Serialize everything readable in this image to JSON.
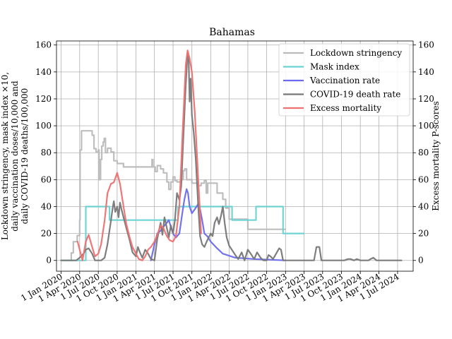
{
  "chart_data": {
    "type": "line",
    "title": "Bahamas",
    "ylabel_left": [
      "Lockdown stringency, mask index ×10,",
      "daily vaccination doses/10,000 and",
      "daily COVID-19 deaths/100,000"
    ],
    "ylabel_right": "Excess mortality P-scores",
    "ylim_left": [
      -8,
      163
    ],
    "ylim_right": [
      -8,
      163
    ],
    "x_range": [
      "2019-12-10",
      "2024-09-15"
    ],
    "x_ticks": [
      {
        "date": "2020-01-01",
        "label": "1 Jan 2020"
      },
      {
        "date": "2020-04-01",
        "label": "1 Apr 2020"
      },
      {
        "date": "2020-07-01",
        "label": "1 Jul 2020"
      },
      {
        "date": "2020-10-01",
        "label": "1 Oct 2020"
      },
      {
        "date": "2021-01-01",
        "label": "1 Jan 2021"
      },
      {
        "date": "2021-04-01",
        "label": "1 Apr 2021"
      },
      {
        "date": "2021-07-01",
        "label": "1 Jul 2021"
      },
      {
        "date": "2021-10-01",
        "label": "1 Oct 2021"
      },
      {
        "date": "2022-01-01",
        "label": "1 Jan 2022"
      },
      {
        "date": "2022-04-01",
        "label": "1 Apr 2022"
      },
      {
        "date": "2022-07-01",
        "label": "1 Jul 2022"
      },
      {
        "date": "2022-10-01",
        "label": "1 Oct 2022"
      },
      {
        "date": "2023-01-01",
        "label": "1 Jan 2023"
      },
      {
        "date": "2023-04-01",
        "label": "1 Apr 2023"
      },
      {
        "date": "2023-07-01",
        "label": "1 Jul 2023"
      },
      {
        "date": "2023-10-01",
        "label": "1 Oct 2023"
      },
      {
        "date": "2024-01-01",
        "label": "1 Jan 2024"
      },
      {
        "date": "2024-04-01",
        "label": "1 Apr 2024"
      },
      {
        "date": "2024-07-01",
        "label": "1 Jul 2024"
      }
    ],
    "y_ticks_left": [
      0,
      20,
      40,
      60,
      80,
      100,
      120,
      140,
      160
    ],
    "y_ticks_right": [
      0,
      20,
      40,
      60,
      80,
      100,
      120,
      140,
      160
    ],
    "grid": true,
    "legend_position": "top-right",
    "series": [
      {
        "name": "Lockdown stringency",
        "color": "#bbbbbb",
        "axis": "left",
        "step": true,
        "points": [
          [
            "2020-01-01",
            0
          ],
          [
            "2020-02-10",
            0
          ],
          [
            "2020-02-20",
            5.6
          ],
          [
            "2020-03-01",
            13.9
          ],
          [
            "2020-03-20",
            18.5
          ],
          [
            "2020-04-01",
            30
          ],
          [
            "2020-04-03",
            82
          ],
          [
            "2020-04-10",
            96.3
          ],
          [
            "2020-06-01",
            93
          ],
          [
            "2020-06-10",
            83
          ],
          [
            "2020-06-20",
            80.6
          ],
          [
            "2020-07-01",
            82
          ],
          [
            "2020-07-05",
            60
          ],
          [
            "2020-07-12",
            75
          ],
          [
            "2020-07-18",
            85
          ],
          [
            "2020-07-25",
            88
          ],
          [
            "2020-07-30",
            90.7
          ],
          [
            "2020-08-05",
            80
          ],
          [
            "2020-08-15",
            83.3
          ],
          [
            "2020-09-01",
            80.6
          ],
          [
            "2020-09-15",
            74
          ],
          [
            "2020-10-01",
            72
          ],
          [
            "2020-11-01",
            69.4
          ],
          [
            "2021-03-15",
            69.4
          ],
          [
            "2021-03-20",
            75
          ],
          [
            "2021-03-25",
            69.4
          ],
          [
            "2021-04-05",
            66
          ],
          [
            "2021-04-15",
            70.4
          ],
          [
            "2021-05-01",
            68
          ],
          [
            "2021-05-15",
            65
          ],
          [
            "2021-06-01",
            58.3
          ],
          [
            "2021-06-10",
            52.8
          ],
          [
            "2021-06-20",
            58.3
          ],
          [
            "2021-07-01",
            62
          ],
          [
            "2021-07-10",
            59.3
          ],
          [
            "2021-07-20",
            58.3
          ],
          [
            "2021-08-10",
            60
          ],
          [
            "2021-08-20",
            66.7
          ],
          [
            "2021-08-27",
            68
          ],
          [
            "2021-09-05",
            60
          ],
          [
            "2021-10-01",
            57.4
          ],
          [
            "2021-11-01",
            55.6
          ],
          [
            "2021-11-15",
            57.4
          ],
          [
            "2021-12-01",
            59.3
          ],
          [
            "2021-12-10",
            50
          ],
          [
            "2021-12-17",
            57.4
          ],
          [
            "2022-01-20",
            57.4
          ],
          [
            "2022-02-01",
            50
          ],
          [
            "2022-03-01",
            45.4
          ],
          [
            "2022-03-15",
            38.9
          ],
          [
            "2022-04-01",
            30.6
          ],
          [
            "2022-06-01",
            30.6
          ],
          [
            "2022-07-01",
            23.1
          ],
          [
            "2022-12-15",
            23.1
          ],
          [
            "2022-12-31",
            23.1
          ]
        ]
      },
      {
        "name": "Mask index",
        "color": "#6ad3d3",
        "axis": "left",
        "step": true,
        "points": [
          [
            "2020-01-01",
            0
          ],
          [
            "2020-04-15",
            0
          ],
          [
            "2020-05-01",
            40
          ],
          [
            "2020-08-15",
            40
          ],
          [
            "2020-08-25",
            30
          ],
          [
            "2021-07-15",
            30
          ],
          [
            "2021-07-25",
            40
          ],
          [
            "2022-03-15",
            40
          ],
          [
            "2022-04-15",
            30
          ],
          [
            "2022-08-01",
            30
          ],
          [
            "2022-08-10",
            40
          ],
          [
            "2022-12-15",
            40
          ],
          [
            "2022-12-20",
            20
          ],
          [
            "2023-03-31",
            20
          ]
        ]
      },
      {
        "name": "Vaccination rate",
        "color": "#6b6bef",
        "axis": "left",
        "step": false,
        "points": [
          [
            "2021-03-15",
            0
          ],
          [
            "2021-04-01",
            12
          ],
          [
            "2021-04-15",
            20
          ],
          [
            "2021-05-01",
            22
          ],
          [
            "2021-05-15",
            25
          ],
          [
            "2021-06-01",
            28
          ],
          [
            "2021-06-10",
            30
          ],
          [
            "2021-06-20",
            25
          ],
          [
            "2021-07-01",
            20
          ],
          [
            "2021-07-15",
            17
          ],
          [
            "2021-08-01",
            20
          ],
          [
            "2021-08-15",
            35
          ],
          [
            "2021-08-25",
            45
          ],
          [
            "2021-09-05",
            53
          ],
          [
            "2021-09-12",
            50
          ],
          [
            "2021-09-20",
            40
          ],
          [
            "2021-10-01",
            35
          ],
          [
            "2021-10-15",
            38
          ],
          [
            "2021-11-01",
            42
          ],
          [
            "2021-11-10",
            38
          ],
          [
            "2021-11-20",
            30
          ],
          [
            "2021-12-01",
            20
          ],
          [
            "2021-12-15",
            18
          ],
          [
            "2022-01-01",
            14
          ],
          [
            "2022-02-01",
            9
          ],
          [
            "2022-03-01",
            5
          ],
          [
            "2022-05-01",
            2
          ],
          [
            "2022-08-01",
            1
          ],
          [
            "2023-01-01",
            0
          ]
        ]
      },
      {
        "name": "COVID-19 death rate",
        "color": "#777777",
        "axis": "left",
        "step": false,
        "points": [
          [
            "2020-01-01",
            0
          ],
          [
            "2020-03-15",
            0
          ],
          [
            "2020-04-01",
            2
          ],
          [
            "2020-04-20",
            5
          ],
          [
            "2020-05-01",
            8
          ],
          [
            "2020-05-15",
            9
          ],
          [
            "2020-06-01",
            5
          ],
          [
            "2020-06-15",
            0
          ],
          [
            "2020-07-01",
            0
          ],
          [
            "2020-07-15",
            0
          ],
          [
            "2020-08-01",
            2
          ],
          [
            "2020-08-15",
            12
          ],
          [
            "2020-09-01",
            30
          ],
          [
            "2020-09-10",
            40
          ],
          [
            "2020-09-15",
            44
          ],
          [
            "2020-09-22",
            36
          ],
          [
            "2020-10-01",
            40
          ],
          [
            "2020-10-08",
            32
          ],
          [
            "2020-10-15",
            43
          ],
          [
            "2020-10-22",
            38
          ],
          [
            "2020-11-01",
            32
          ],
          [
            "2020-11-15",
            24
          ],
          [
            "2020-12-01",
            15
          ],
          [
            "2020-12-15",
            6
          ],
          [
            "2021-01-01",
            3
          ],
          [
            "2021-01-10",
            10
          ],
          [
            "2021-01-20",
            6
          ],
          [
            "2021-02-01",
            2
          ],
          [
            "2021-02-15",
            8
          ],
          [
            "2021-03-01",
            5
          ],
          [
            "2021-03-15",
            1
          ],
          [
            "2021-04-01",
            0
          ],
          [
            "2021-04-15",
            16
          ],
          [
            "2021-05-01",
            28
          ],
          [
            "2021-05-10",
            19
          ],
          [
            "2021-05-20",
            32
          ],
          [
            "2021-06-01",
            24
          ],
          [
            "2021-06-10",
            17
          ],
          [
            "2021-06-20",
            26
          ],
          [
            "2021-07-01",
            20
          ],
          [
            "2021-07-10",
            30
          ],
          [
            "2021-07-20",
            50
          ],
          [
            "2021-08-01",
            45
          ],
          [
            "2021-08-10",
            55
          ],
          [
            "2021-08-20",
            90
          ],
          [
            "2021-09-01",
            130
          ],
          [
            "2021-09-10",
            154
          ],
          [
            "2021-09-15",
            150
          ],
          [
            "2021-09-20",
            118
          ],
          [
            "2021-09-25",
            135
          ],
          [
            "2021-10-01",
            108
          ],
          [
            "2021-10-10",
            95
          ],
          [
            "2021-10-20",
            75
          ],
          [
            "2021-11-01",
            40
          ],
          [
            "2021-11-10",
            18
          ],
          [
            "2021-11-20",
            12
          ],
          [
            "2021-12-01",
            10
          ],
          [
            "2021-12-15",
            15
          ],
          [
            "2022-01-01",
            20
          ],
          [
            "2022-01-10",
            18
          ],
          [
            "2022-01-20",
            28
          ],
          [
            "2022-02-01",
            32
          ],
          [
            "2022-02-10",
            27
          ],
          [
            "2022-02-20",
            33
          ],
          [
            "2022-03-01",
            40
          ],
          [
            "2022-03-10",
            28
          ],
          [
            "2022-03-20",
            17
          ],
          [
            "2022-04-01",
            11
          ],
          [
            "2022-05-01",
            4
          ],
          [
            "2022-05-15",
            1
          ],
          [
            "2022-06-01",
            6
          ],
          [
            "2022-06-15",
            0
          ],
          [
            "2022-07-01",
            8
          ],
          [
            "2022-07-15",
            5
          ],
          [
            "2022-08-01",
            1
          ],
          [
            "2022-08-15",
            6
          ],
          [
            "2022-09-01",
            2
          ],
          [
            "2022-09-15",
            0
          ],
          [
            "2022-10-01",
            0
          ],
          [
            "2022-10-10",
            4
          ],
          [
            "2022-10-20",
            3
          ],
          [
            "2022-11-01",
            1
          ],
          [
            "2022-12-01",
            9
          ],
          [
            "2022-12-10",
            8
          ],
          [
            "2022-12-20",
            0
          ],
          [
            "2023-05-20",
            0
          ],
          [
            "2023-06-01",
            10
          ],
          [
            "2023-06-15",
            10
          ],
          [
            "2023-06-25",
            0
          ],
          [
            "2023-10-15",
            0
          ],
          [
            "2023-11-01",
            1
          ],
          [
            "2023-11-15",
            1
          ],
          [
            "2023-12-01",
            0
          ],
          [
            "2023-12-15",
            1
          ],
          [
            "2024-01-01",
            0
          ],
          [
            "2024-02-10",
            0
          ],
          [
            "2024-02-20",
            1
          ],
          [
            "2024-03-05",
            2
          ],
          [
            "2024-03-20",
            0
          ],
          [
            "2024-07-20",
            0
          ]
        ]
      },
      {
        "name": "Excess mortality",
        "color": "#ee7070",
        "axis": "right",
        "step": false,
        "points": [
          [
            "2020-03-22",
            14
          ],
          [
            "2020-04-01",
            8
          ],
          [
            "2020-04-15",
            0
          ],
          [
            "2020-05-01",
            14
          ],
          [
            "2020-05-15",
            19
          ],
          [
            "2020-06-01",
            10
          ],
          [
            "2020-06-15",
            3
          ],
          [
            "2020-07-01",
            5
          ],
          [
            "2020-07-15",
            12
          ],
          [
            "2020-08-01",
            30
          ],
          [
            "2020-08-15",
            50
          ],
          [
            "2020-09-01",
            57
          ],
          [
            "2020-09-15",
            58
          ],
          [
            "2020-10-01",
            65
          ],
          [
            "2020-10-15",
            57
          ],
          [
            "2020-11-01",
            40
          ],
          [
            "2020-11-15",
            27
          ],
          [
            "2020-12-01",
            17
          ],
          [
            "2020-12-15",
            10
          ],
          [
            "2021-01-01",
            5
          ],
          [
            "2021-01-15",
            1
          ],
          [
            "2021-02-01",
            0
          ],
          [
            "2021-02-15",
            3
          ],
          [
            "2021-03-01",
            8
          ],
          [
            "2021-03-15",
            10
          ],
          [
            "2021-04-01",
            14
          ],
          [
            "2021-04-15",
            19
          ],
          [
            "2021-05-01",
            26
          ],
          [
            "2021-05-15",
            24
          ],
          [
            "2021-06-01",
            18
          ],
          [
            "2021-06-15",
            15
          ],
          [
            "2021-07-01",
            14
          ],
          [
            "2021-07-15",
            18
          ],
          [
            "2021-08-01",
            40
          ],
          [
            "2021-08-15",
            90
          ],
          [
            "2021-09-01",
            145
          ],
          [
            "2021-09-10",
            156
          ],
          [
            "2021-09-20",
            150
          ],
          [
            "2021-10-01",
            140
          ],
          [
            "2021-10-15",
            110
          ],
          [
            "2021-11-01",
            60
          ],
          [
            "2021-11-15",
            20
          ]
        ]
      }
    ]
  }
}
